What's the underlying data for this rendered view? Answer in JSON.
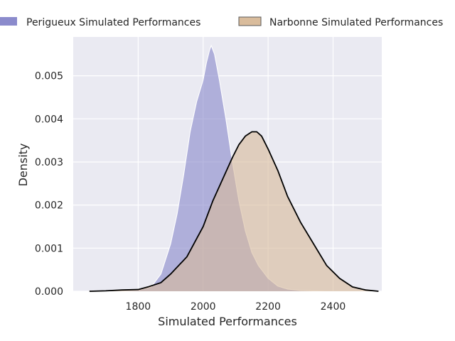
{
  "chart_data": {
    "type": "area",
    "title": "",
    "xlabel": "Simulated Performances",
    "ylabel": "Density",
    "xlim": [
      1600,
      2550
    ],
    "ylim": [
      0,
      0.0059
    ],
    "xticks": [
      1800,
      2000,
      2200,
      2400
    ],
    "xtick_labels": [
      "1800",
      "2000",
      "2200",
      "2400"
    ],
    "yticks": [
      0,
      0.001,
      0.002,
      0.003,
      0.004,
      0.005
    ],
    "ytick_labels": [
      "0.000",
      "0.001",
      "0.002",
      "0.003",
      "0.004",
      "0.005"
    ],
    "grid": true,
    "legend_placement": "top",
    "series": [
      {
        "name": "Perigueux Simulated Performances",
        "color": "#8b8bcc",
        "edge_color": "#ffffff",
        "x": [
          1700,
          1750,
          1800,
          1840,
          1870,
          1900,
          1920,
          1940,
          1960,
          1980,
          2000,
          2010,
          2020,
          2025,
          2035,
          2050,
          2070,
          2090,
          2110,
          2130,
          2150,
          2170,
          2200,
          2230,
          2260,
          2300,
          2340,
          2380,
          2420,
          2460
        ],
        "y": [
          0.0,
          1e-05,
          3e-05,
          0.0001,
          0.0004,
          0.0011,
          0.0018,
          0.0027,
          0.0037,
          0.0044,
          0.0049,
          0.0053,
          0.0056,
          0.0057,
          0.0055,
          0.0049,
          0.004,
          0.003,
          0.0021,
          0.0014,
          0.0009,
          0.0006,
          0.0003,
          0.00012,
          5e-05,
          2e-05,
          1e-05,
          0.0,
          0.0,
          0.0
        ]
      },
      {
        "name": "Narbonne Simulated Performances",
        "color": "#d9bc9c",
        "edge_color": "#000000",
        "x": [
          1650,
          1700,
          1750,
          1800,
          1830,
          1870,
          1900,
          1950,
          2000,
          2030,
          2060,
          2090,
          2110,
          2130,
          2150,
          2165,
          2180,
          2200,
          2230,
          2260,
          2300,
          2340,
          2380,
          2420,
          2460,
          2500,
          2540
        ],
        "y": [
          0.0,
          1e-05,
          3e-05,
          4e-05,
          0.0001,
          0.0002,
          0.0004,
          0.0008,
          0.0015,
          0.0021,
          0.0026,
          0.0031,
          0.0034,
          0.0036,
          0.0037,
          0.0037,
          0.0036,
          0.0033,
          0.0028,
          0.0022,
          0.0016,
          0.0011,
          0.0006,
          0.0003,
          0.0001,
          3e-05,
          0.0
        ]
      }
    ]
  }
}
